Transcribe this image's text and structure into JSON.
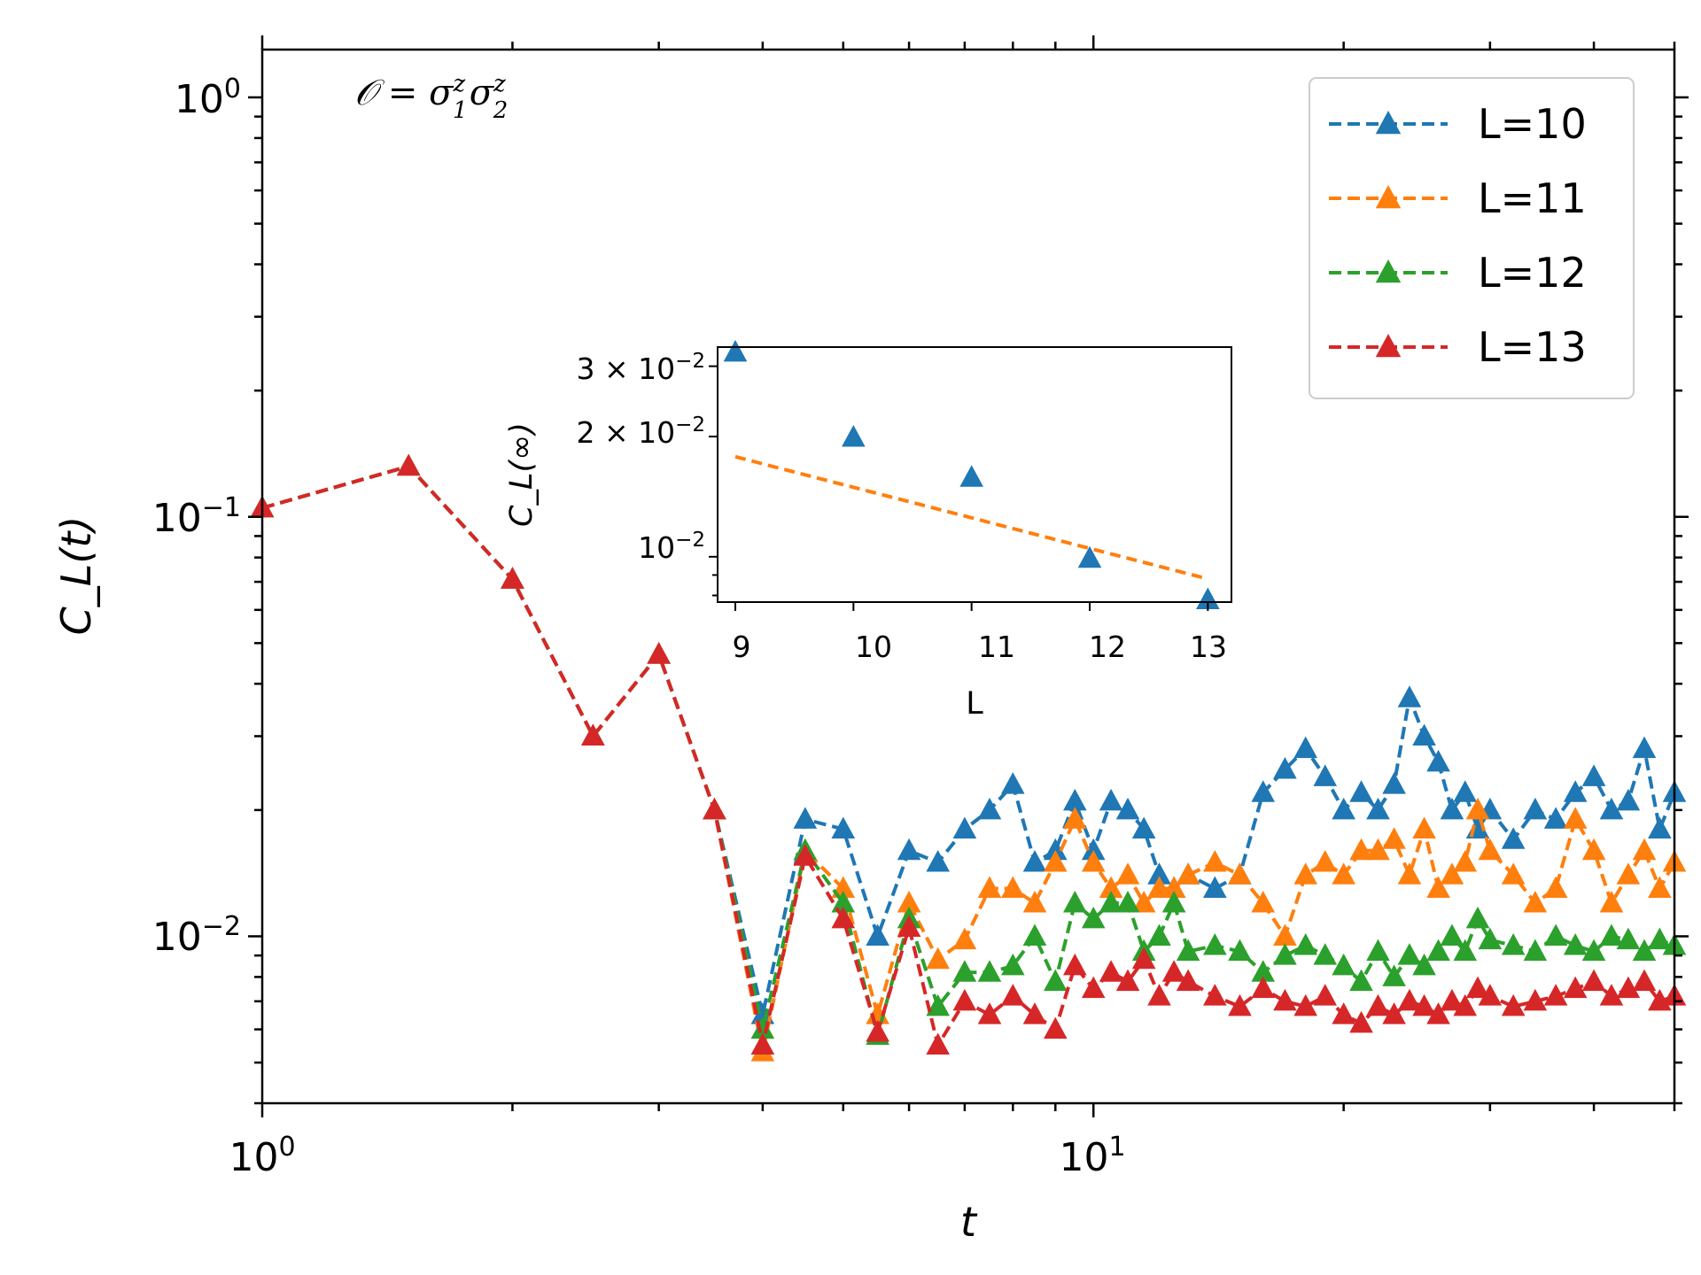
{
  "chart_data": [
    {
      "type": "line",
      "title": "",
      "annotation": {
        "prefix": "𝒪 = σ",
        "sup1": "z",
        "sub1": "1",
        "mid": "σ",
        "sup2": "z",
        "sub2": "2"
      },
      "xlabel": "t",
      "ylabel": "C_L(t)",
      "xscale": "log",
      "yscale": "log",
      "xlim": [
        1,
        50
      ],
      "ylim": [
        0.004,
        1.3
      ],
      "xticks": [
        {
          "value": 1,
          "base": "10",
          "exp": "0"
        },
        {
          "value": 10,
          "base": "10",
          "exp": "1"
        }
      ],
      "yticks": [
        {
          "value": 1,
          "base": "10",
          "exp": "0"
        },
        {
          "value": 0.1,
          "base": "10",
          "exp": "−1"
        },
        {
          "value": 0.01,
          "base": "10",
          "exp": "−2"
        }
      ],
      "legend": {
        "position": "top-right",
        "entries": [
          "L=10",
          "L=11",
          "L=12",
          "L=13"
        ]
      },
      "marker": "triangle-up",
      "line_style": "dashed",
      "common_early": {
        "x": [
          1.0,
          1.5,
          2.0,
          2.5,
          3.0,
          3.5
        ],
        "y": [
          0.105,
          0.132,
          0.071,
          0.03,
          0.047,
          0.02
        ]
      },
      "series": [
        {
          "name": "L=10",
          "color": "#1f77b4",
          "x": [
            4.0,
            4.5,
            5.0,
            5.5,
            6.0,
            6.5,
            7.0,
            7.5,
            8.0,
            8.5,
            9.0,
            9.5,
            10.0,
            10.5,
            11.0,
            11.5,
            12.0,
            12.5,
            13.0,
            14.0,
            15.0,
            16.0,
            17.0,
            18.0,
            19.0,
            20.0,
            21.0,
            22.0,
            23.0,
            24.0,
            25.0,
            26.0,
            27.0,
            28.0,
            29.0,
            30.0,
            32.0,
            34.0,
            36.0,
            38.0,
            40.0,
            42.0,
            44.0,
            46.0,
            48.0,
            50.0
          ],
          "y": [
            0.0065,
            0.019,
            0.018,
            0.01,
            0.016,
            0.015,
            0.018,
            0.02,
            0.023,
            0.015,
            0.016,
            0.021,
            0.016,
            0.021,
            0.02,
            0.018,
            0.014,
            0.013,
            0.014,
            0.013,
            0.014,
            0.022,
            0.025,
            0.028,
            0.024,
            0.02,
            0.022,
            0.02,
            0.023,
            0.037,
            0.03,
            0.026,
            0.02,
            0.022,
            0.018,
            0.02,
            0.017,
            0.02,
            0.019,
            0.022,
            0.024,
            0.02,
            0.021,
            0.028,
            0.018,
            0.022
          ]
        },
        {
          "name": "L=11",
          "color": "#ff7f0e",
          "x": [
            4.0,
            4.5,
            5.0,
            5.5,
            6.0,
            6.5,
            7.0,
            7.5,
            8.0,
            8.5,
            9.0,
            9.5,
            10.0,
            10.5,
            11.0,
            11.5,
            12.0,
            12.5,
            13.0,
            14.0,
            15.0,
            16.0,
            17.0,
            18.0,
            19.0,
            20.0,
            21.0,
            22.0,
            23.0,
            24.0,
            25.0,
            26.0,
            27.0,
            28.0,
            29.0,
            30.0,
            32.0,
            34.0,
            36.0,
            38.0,
            40.0,
            42.0,
            44.0,
            46.0,
            48.0,
            50.0
          ],
          "y": [
            0.0053,
            0.016,
            0.013,
            0.0065,
            0.012,
            0.0088,
            0.0098,
            0.013,
            0.013,
            0.012,
            0.015,
            0.019,
            0.015,
            0.013,
            0.014,
            0.012,
            0.013,
            0.013,
            0.014,
            0.015,
            0.014,
            0.012,
            0.01,
            0.014,
            0.015,
            0.014,
            0.016,
            0.016,
            0.017,
            0.014,
            0.018,
            0.013,
            0.014,
            0.015,
            0.02,
            0.016,
            0.014,
            0.012,
            0.013,
            0.019,
            0.016,
            0.012,
            0.014,
            0.016,
            0.013,
            0.015
          ]
        },
        {
          "name": "L=12",
          "color": "#2ca02c",
          "x": [
            4.0,
            4.5,
            5.0,
            5.5,
            6.0,
            6.5,
            7.0,
            7.5,
            8.0,
            8.5,
            9.0,
            9.5,
            10.0,
            10.5,
            11.0,
            11.5,
            12.0,
            12.5,
            13.0,
            14.0,
            15.0,
            16.0,
            17.0,
            18.0,
            19.0,
            20.0,
            21.0,
            22.0,
            23.0,
            24.0,
            25.0,
            26.0,
            27.0,
            28.0,
            29.0,
            30.0,
            32.0,
            34.0,
            36.0,
            38.0,
            40.0,
            42.0,
            44.0,
            46.0,
            48.0,
            50.0
          ],
          "y": [
            0.006,
            0.016,
            0.012,
            0.0058,
            0.011,
            0.0068,
            0.0082,
            0.0082,
            0.0085,
            0.01,
            0.0078,
            0.012,
            0.011,
            0.012,
            0.012,
            0.0092,
            0.01,
            0.012,
            0.0092,
            0.0095,
            0.0092,
            0.0082,
            0.009,
            0.0095,
            0.009,
            0.0085,
            0.0078,
            0.0092,
            0.008,
            0.009,
            0.0085,
            0.0092,
            0.01,
            0.0092,
            0.011,
            0.0098,
            0.0095,
            0.0092,
            0.01,
            0.0095,
            0.0092,
            0.01,
            0.0098,
            0.0092,
            0.0098,
            0.0095
          ]
        },
        {
          "name": "L=13",
          "color": "#d62728",
          "x": [
            4.0,
            4.5,
            5.0,
            5.5,
            6.0,
            6.5,
            7.0,
            7.5,
            8.0,
            8.5,
            9.0,
            9.5,
            10.0,
            10.5,
            11.0,
            11.5,
            12.0,
            12.5,
            13.0,
            14.0,
            15.0,
            16.0,
            17.0,
            18.0,
            19.0,
            20.0,
            21.0,
            22.0,
            23.0,
            24.0,
            25.0,
            26.0,
            27.0,
            28.0,
            29.0,
            30.0,
            32.0,
            34.0,
            36.0,
            38.0,
            40.0,
            42.0,
            44.0,
            46.0,
            48.0,
            50.0
          ],
          "y": [
            0.0055,
            0.0155,
            0.011,
            0.0059,
            0.0105,
            0.0055,
            0.007,
            0.0065,
            0.0072,
            0.0065,
            0.006,
            0.0085,
            0.0075,
            0.0082,
            0.0078,
            0.0088,
            0.0072,
            0.0082,
            0.0078,
            0.0072,
            0.0068,
            0.0075,
            0.007,
            0.0068,
            0.0072,
            0.0065,
            0.0062,
            0.0068,
            0.0065,
            0.007,
            0.0068,
            0.0065,
            0.007,
            0.0068,
            0.0075,
            0.0072,
            0.0068,
            0.007,
            0.0072,
            0.0075,
            0.0078,
            0.0072,
            0.0075,
            0.0078,
            0.007,
            0.0072
          ]
        }
      ]
    },
    {
      "type": "scatter",
      "title": "",
      "xlabel": "L",
      "ylabel": "C_L(∞)",
      "yscale": "log",
      "xlim": [
        8.85,
        13.2
      ],
      "ylim": [
        0.0077,
        0.0335
      ],
      "xticks": [
        9,
        10,
        11,
        12,
        13
      ],
      "yticks": [
        {
          "value": 0.03,
          "mant": "3 × 10",
          "exp": "−2"
        },
        {
          "value": 0.02,
          "mant": "2 × 10",
          "exp": "−2"
        },
        {
          "value": 0.01,
          "mant": "10",
          "exp": "−2"
        }
      ],
      "points": {
        "name": "data",
        "color": "#1f77b4",
        "marker": "triangle-up",
        "x": [
          9,
          10,
          11,
          12,
          13
        ],
        "y": [
          0.0325,
          0.0199,
          0.0158,
          0.0099,
          0.0078
        ]
      },
      "fit": {
        "name": "fit",
        "color": "#ff7f0e",
        "style": "dashed",
        "x": [
          9,
          13
        ],
        "y": [
          0.0178,
          0.0088
        ]
      }
    }
  ]
}
